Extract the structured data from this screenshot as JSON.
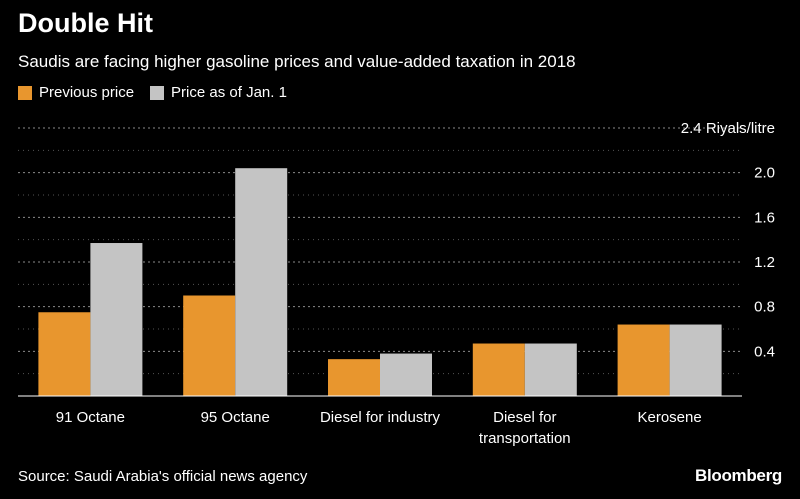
{
  "header": {
    "title": "Double Hit",
    "subtitle": "Saudis are facing higher gasoline prices and value-added taxation in 2018"
  },
  "legend": [
    {
      "label": "Previous price",
      "color": "#e8962e"
    },
    {
      "label": "Price as of Jan. 1",
      "color": "#c4c4c4"
    }
  ],
  "footer": {
    "source": "Source: Saudi Arabia's official news agency",
    "brand": "Bloomberg"
  },
  "chart_data": {
    "type": "bar",
    "categories": [
      [
        "91 Octane"
      ],
      [
        "95 Octane"
      ],
      [
        "Diesel for industry"
      ],
      [
        "Diesel for",
        "transportation"
      ],
      [
        "Kerosene"
      ]
    ],
    "series": [
      {
        "name": "Previous price",
        "color": "#e8962e",
        "values": [
          0.75,
          0.9,
          0.33,
          0.47,
          0.64
        ]
      },
      {
        "name": "Price as of Jan. 1",
        "color": "#c4c4c4",
        "values": [
          1.37,
          2.04,
          0.38,
          0.47,
          0.64
        ]
      }
    ],
    "yticks": [
      {
        "value": 0.4,
        "label": "0.4"
      },
      {
        "value": 0.8,
        "label": "0.8"
      },
      {
        "value": 1.2,
        "label": "1.2"
      },
      {
        "value": 1.6,
        "label": "1.6"
      },
      {
        "value": 2.0,
        "label": "2.0"
      },
      {
        "value": 2.4,
        "label": "2.4 Riyals/litre"
      }
    ],
    "ylim": [
      0,
      2.4
    ],
    "grid": true,
    "legend_position": "top-left"
  }
}
